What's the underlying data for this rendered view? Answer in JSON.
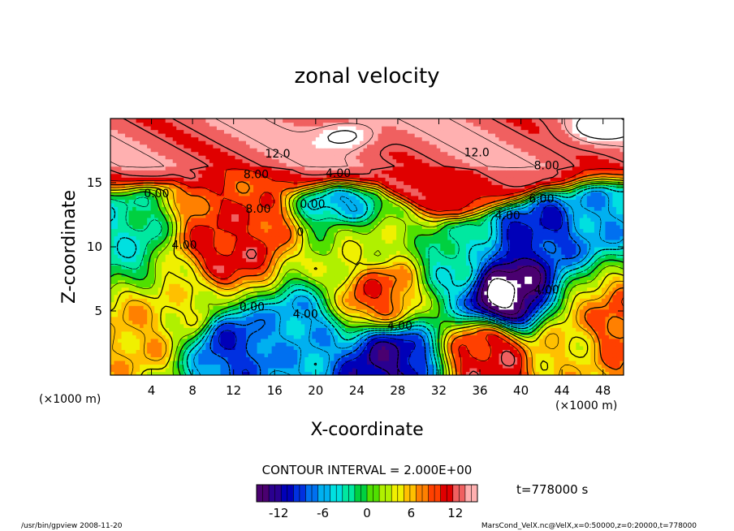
{
  "chart_data": {
    "type": "heatmap",
    "title": "zonal velocity",
    "xlabel": "X-coordinate",
    "ylabel": "Z-coordinate",
    "x_unit": "(×1000 m)",
    "z_unit": "(×1000 m)",
    "xlim": [
      0,
      50
    ],
    "ylim": [
      0,
      20
    ],
    "x_ticks": [
      4,
      8,
      12,
      16,
      20,
      24,
      28,
      32,
      36,
      40,
      44,
      48
    ],
    "y_ticks": [
      5,
      10,
      15
    ],
    "contour_interval_text": "CONTOUR INTERVAL = 2.000E+00",
    "time_text": "t=778000 s",
    "colorbar": {
      "min": -15,
      "max": 15,
      "ticks": [
        -12,
        -6,
        0,
        6,
        12
      ],
      "colors": [
        "#4a0070",
        "#2a0090",
        "#0000b8",
        "#0030e0",
        "#0070f0",
        "#00b0f0",
        "#00e0e0",
        "#00e8a0",
        "#00d040",
        "#50e000",
        "#b0f000",
        "#f0f000",
        "#ffc000",
        "#ff8000",
        "#ff4000",
        "#e00000",
        "#f06060",
        "#ffb0b0"
      ]
    },
    "contour_labels": [
      {
        "text": "12.0",
        "x": 16.3,
        "z": 17.2
      },
      {
        "text": "12.0",
        "x": 35.7,
        "z": 17.3
      },
      {
        "text": "8.00",
        "x": 14.2,
        "z": 15.6
      },
      {
        "text": "4.00",
        "x": 22.2,
        "z": 15.7
      },
      {
        "text": "8.00",
        "x": 42.5,
        "z": 16.3
      },
      {
        "text": "0.00",
        "x": 4.5,
        "z": 14.1
      },
      {
        "text": "8.00",
        "x": 14.4,
        "z": 12.9
      },
      {
        "text": "0.00",
        "x": 19.7,
        "z": 13.3
      },
      {
        "text": "0",
        "x": 18.5,
        "z": 11.1
      },
      {
        "text": "6.00",
        "x": 42.0,
        "z": 13.7
      },
      {
        "text": "4.00",
        "x": 38.7,
        "z": 12.4
      },
      {
        "text": "4.00",
        "x": 7.2,
        "z": 10.1
      },
      {
        "text": "0.00",
        "x": 13.8,
        "z": 5.3
      },
      {
        "text": "4.00",
        "x": 19.0,
        "z": 4.7
      },
      {
        "text": "4.00",
        "x": 28.2,
        "z": 3.8
      },
      {
        "text": "4.00",
        "x": 42.5,
        "z": 6.6
      }
    ],
    "field_features": [
      {
        "x": 11.5,
        "z": 9.5,
        "value": 11
      },
      {
        "x": 13.0,
        "z": 11.5,
        "value": 10
      },
      {
        "x": 26.0,
        "z": 6.5,
        "value": 9
      },
      {
        "x": 12.0,
        "z": 2.5,
        "value": -9
      },
      {
        "x": 18.0,
        "z": 3.5,
        "value": -6
      },
      {
        "x": 27.0,
        "z": 1.0,
        "value": -12
      },
      {
        "x": 38.5,
        "z": 6.5,
        "value": -16
      },
      {
        "x": 34.0,
        "z": 9.5,
        "value": -3
      },
      {
        "x": 41.5,
        "z": 12.3,
        "value": -10
      },
      {
        "x": 46.5,
        "z": 13.5,
        "value": -6
      },
      {
        "x": 23.0,
        "z": 14.0,
        "value": -6
      },
      {
        "x": 2.5,
        "z": 3.5,
        "value": 6
      },
      {
        "x": 49.0,
        "z": 3.5,
        "value": 9
      },
      {
        "x": 37.0,
        "z": 1.5,
        "value": 11
      },
      {
        "x": 45.5,
        "z": 2.5,
        "value": 5
      },
      {
        "x": 29.5,
        "z": 12.5,
        "value": 2
      },
      {
        "x": 8.0,
        "z": 6.0,
        "value": 4
      },
      {
        "x": 24.0,
        "z": 10.0,
        "value": 3
      },
      {
        "x": 1.0,
        "z": 10.5,
        "value": -3
      }
    ],
    "upper_layer": {
      "value": 13,
      "boundary_z": [
        14.5,
        14.6,
        14.8,
        15.0,
        14.6,
        15.2,
        15.8,
        15.4,
        14.4,
        14.2,
        14.6,
        14.9,
        14.8,
        14.6,
        13.8,
        13.0,
        12.4,
        12.2,
        12.6,
        13.0,
        13.6,
        14.3,
        14.6,
        15.0,
        15.2,
        15.0
      ],
      "white_patches": [
        {
          "x": 23.0,
          "z": 18.7,
          "value": 18
        },
        {
          "x": 47.5,
          "z": 19.2,
          "value": 18
        }
      ]
    }
  },
  "footer": {
    "left": "/usr/bin/gpview  2008-11-20",
    "right": "MarsCond_VelX.nc@VelX,x=0:50000,z=0:20000,t=778000"
  }
}
